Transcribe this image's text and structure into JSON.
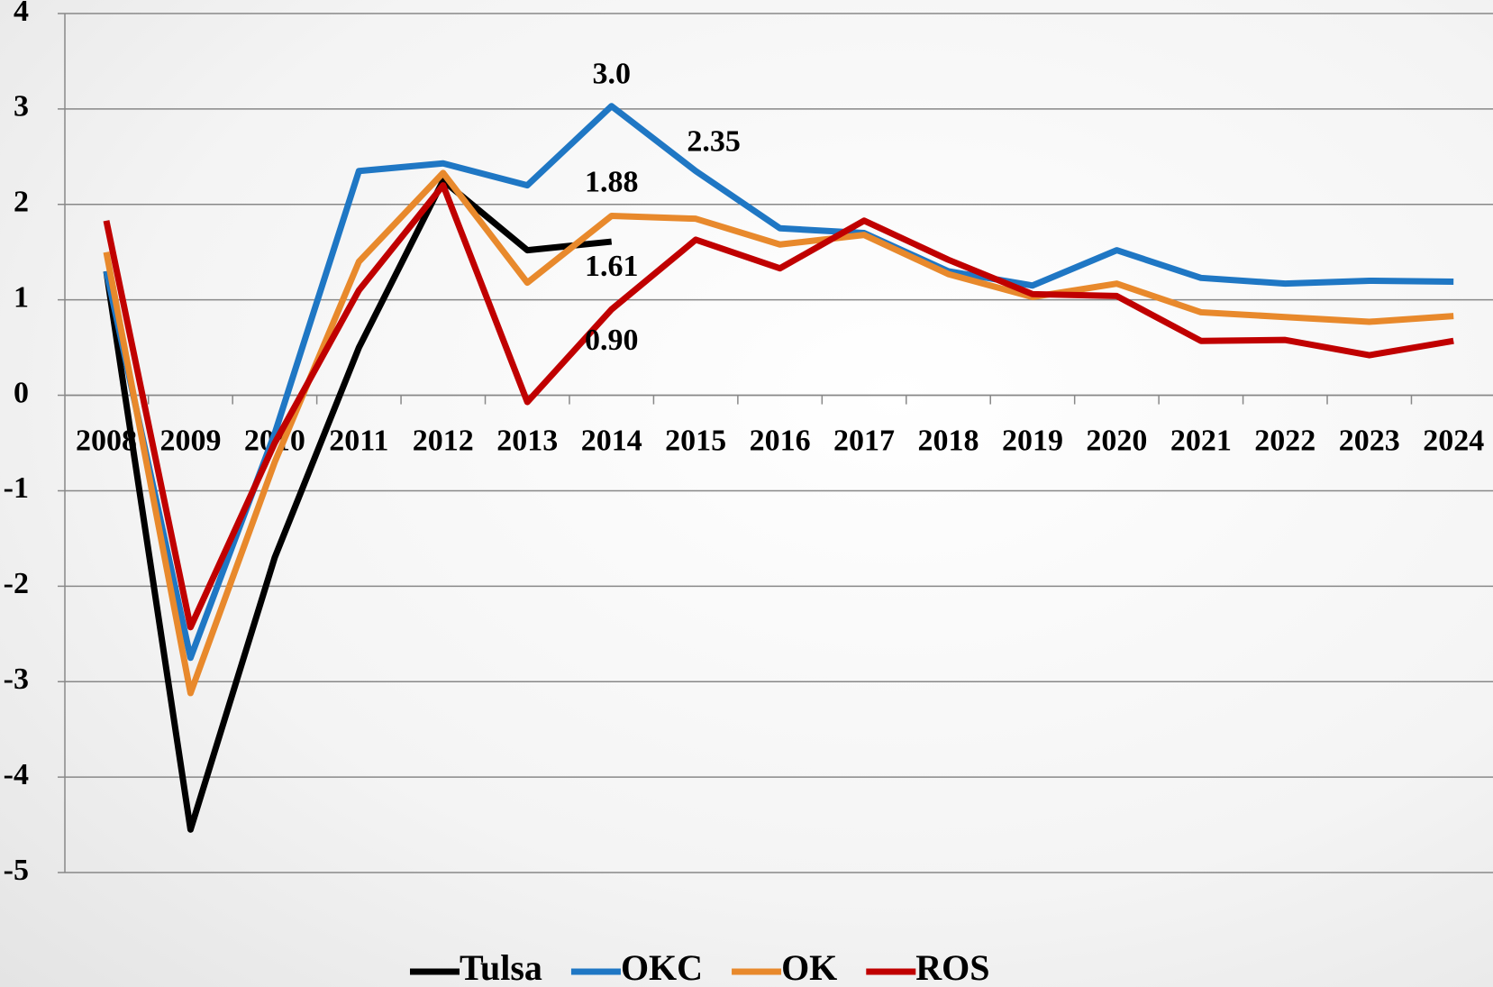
{
  "chart_data": {
    "type": "line",
    "categories": [
      "2008",
      "2009",
      "2010",
      "2011",
      "2012",
      "2013",
      "2014",
      "2015",
      "2016",
      "2017",
      "2018",
      "2019",
      "2020",
      "2021",
      "2022",
      "2023",
      "2024"
    ],
    "series": [
      {
        "name": "Tulsa",
        "color": "#000000",
        "values": [
          1.3,
          -4.55,
          -1.7,
          0.5,
          2.25,
          1.52,
          1.61,
          null,
          null,
          null,
          null,
          null,
          null,
          null,
          null,
          null,
          null
        ],
        "value_labels": [
          null,
          null,
          null,
          null,
          null,
          null,
          "1.61",
          null,
          null,
          null,
          null,
          null,
          null,
          null,
          null,
          null,
          null
        ]
      },
      {
        "name": "OKC",
        "color": "#1f77c4",
        "values": [
          1.3,
          -2.75,
          -0.4,
          2.35,
          2.43,
          2.2,
          3.03,
          2.35,
          1.75,
          1.7,
          1.3,
          1.15,
          1.52,
          1.23,
          1.17,
          1.2,
          1.19
        ],
        "value_labels": [
          null,
          null,
          null,
          null,
          null,
          null,
          "3.0",
          "2.35",
          null,
          null,
          null,
          null,
          null,
          null,
          null,
          null,
          null
        ]
      },
      {
        "name": "OK",
        "color": "#e8892c",
        "values": [
          1.5,
          -3.12,
          -0.7,
          1.4,
          2.33,
          1.18,
          1.88,
          1.85,
          1.58,
          1.68,
          1.27,
          1.03,
          1.17,
          0.87,
          0.82,
          0.77,
          0.83
        ],
        "value_labels": [
          null,
          null,
          null,
          null,
          null,
          null,
          "1.88",
          null,
          null,
          null,
          null,
          null,
          null,
          null,
          null,
          null,
          null
        ]
      },
      {
        "name": "ROS",
        "color": "#c00000",
        "values": [
          1.83,
          -2.43,
          -0.5,
          1.1,
          2.2,
          -0.07,
          0.9,
          1.63,
          1.33,
          1.83,
          1.42,
          1.06,
          1.04,
          0.57,
          0.58,
          0.42,
          0.57
        ],
        "value_labels": [
          null,
          null,
          null,
          null,
          null,
          null,
          "0.90",
          null,
          null,
          null,
          null,
          null,
          null,
          null,
          null,
          null,
          null
        ]
      }
    ],
    "ylim": [
      -5,
      4
    ],
    "yticks": [
      -5,
      -4,
      -3,
      -2,
      -1,
      0,
      1,
      2,
      3,
      4
    ],
    "grid": true,
    "legend": "bottom"
  }
}
